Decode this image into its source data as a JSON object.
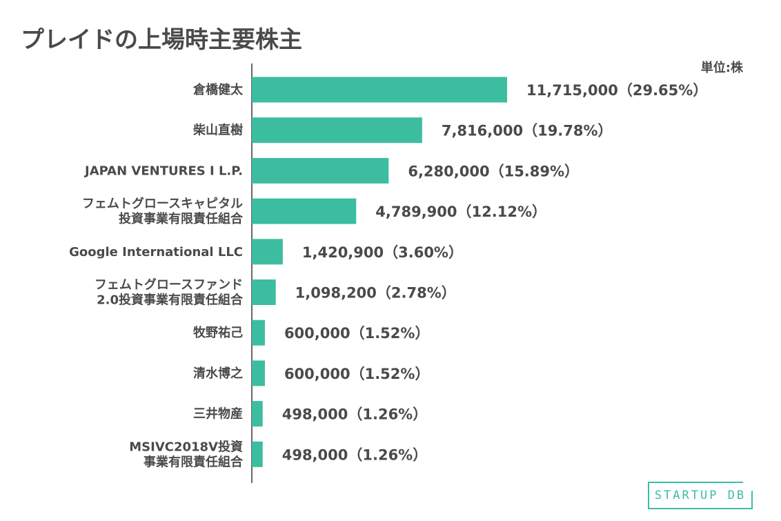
{
  "title": "プレイドの上場時主要株主",
  "unit_label": "単位:株",
  "logo_text": "STARTUP DB",
  "colors": {
    "bar": "#3dbda0",
    "text": "#4a4a4a"
  },
  "chart_data": {
    "type": "bar",
    "orientation": "horizontal",
    "categories": [
      [
        "倉橋健太"
      ],
      [
        "柴山直樹"
      ],
      [
        "JAPAN VENTURES I L.P."
      ],
      [
        "フェムトグロースキャピタル",
        "投資事業有限責任組合"
      ],
      [
        "Google International LLC"
      ],
      [
        "フェムトグロースファンド",
        "2.0投資事業有限責任組合"
      ],
      [
        "牧野祐己"
      ],
      [
        "清水博之"
      ],
      [
        "三井物産"
      ],
      [
        "MSIVC2018V投資",
        "事業有限責任組合"
      ]
    ],
    "values": [
      11715000,
      7816000,
      6280000,
      4789900,
      1420900,
      1098200,
      600000,
      600000,
      498000,
      498000
    ],
    "value_labels": [
      "11,715,000（29.65%）",
      "7,816,000（19.78%）",
      "6,280,000（15.89%）",
      "4,789,900（12.12%）",
      "1,420,900（3.60%）",
      "1,098,200（2.78%）",
      "600,000（1.52%）",
      "600,000（1.52%）",
      "498,000（1.26%）",
      "498,000（1.26%）"
    ],
    "xlim": [
      0,
      11715000
    ]
  }
}
